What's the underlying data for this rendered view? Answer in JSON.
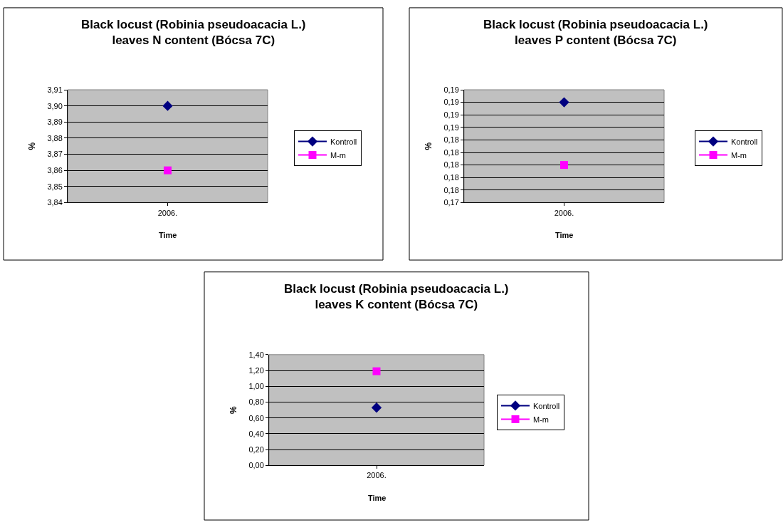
{
  "chart_data": [
    {
      "type": "line",
      "title": "Black locust (Robinia pseudoacacia L.)\nleaves N content (Bócsa 7C)",
      "xlabel": "Time",
      "ylabel": "%",
      "categories": [
        "2006."
      ],
      "series": [
        {
          "name": "Kontroll",
          "color": "#000080",
          "values": [
            3.9
          ],
          "marker": "diamond"
        },
        {
          "name": "M-m",
          "color": "#ff00ff",
          "values": [
            3.86
          ],
          "marker": "square"
        }
      ],
      "ylim": [
        3.84,
        3.91
      ],
      "yticks": [
        {
          "value": 3.84,
          "label": "3,84"
        },
        {
          "value": 3.85,
          "label": "3,85"
        },
        {
          "value": 3.86,
          "label": "3,86"
        },
        {
          "value": 3.87,
          "label": "3,87"
        },
        {
          "value": 3.88,
          "label": "3,88"
        },
        {
          "value": 3.89,
          "label": "3,89"
        },
        {
          "value": 3.9,
          "label": "3,90"
        },
        {
          "value": 3.91,
          "label": "3,91"
        }
      ],
      "grid": "y",
      "legend": "right"
    },
    {
      "type": "line",
      "title": "Black locust (Robinia pseudoacacia L.)\nleaves P content (Bócsa 7C)",
      "xlabel": "Time",
      "ylabel": "%",
      "categories": [
        "2006."
      ],
      "series": [
        {
          "name": "Kontroll",
          "color": "#000080",
          "values": [
            0.19
          ],
          "marker": "diamond"
        },
        {
          "name": "M-m",
          "color": "#ff00ff",
          "values": [
            0.18
          ],
          "marker": "square"
        }
      ],
      "ylim": [
        0.174,
        0.192
      ],
      "yticks": [
        {
          "value": 0.174,
          "label": "0,17"
        },
        {
          "value": 0.176,
          "label": "0,18"
        },
        {
          "value": 0.178,
          "label": "0,18"
        },
        {
          "value": 0.18,
          "label": "0,18"
        },
        {
          "value": 0.182,
          "label": "0,18"
        },
        {
          "value": 0.184,
          "label": "0,18"
        },
        {
          "value": 0.186,
          "label": "0,19"
        },
        {
          "value": 0.188,
          "label": "0,19"
        },
        {
          "value": 0.19,
          "label": "0,19"
        },
        {
          "value": 0.192,
          "label": "0,19"
        }
      ],
      "grid": "y",
      "legend": "right"
    },
    {
      "type": "line",
      "title": "Black locust (Robinia pseudoacacia L.)\nleaves K content (Bócsa 7C)",
      "xlabel": "Time",
      "ylabel": "%",
      "categories": [
        "2006."
      ],
      "series": [
        {
          "name": "Kontroll",
          "color": "#000080",
          "values": [
            0.73
          ],
          "marker": "diamond"
        },
        {
          "name": "M-m",
          "color": "#ff00ff",
          "values": [
            1.19
          ],
          "marker": "square"
        }
      ],
      "ylim": [
        0,
        1.4
      ],
      "yticks": [
        {
          "value": 0,
          "label": "0,00"
        },
        {
          "value": 0.2,
          "label": "0,20"
        },
        {
          "value": 0.4,
          "label": "0,40"
        },
        {
          "value": 0.6,
          "label": "0,60"
        },
        {
          "value": 0.8,
          "label": "0,80"
        },
        {
          "value": 1.0,
          "label": "1,00"
        },
        {
          "value": 1.2,
          "label": "1,20"
        },
        {
          "value": 1.4,
          "label": "1,40"
        }
      ],
      "grid": "y",
      "legend": "right"
    }
  ]
}
